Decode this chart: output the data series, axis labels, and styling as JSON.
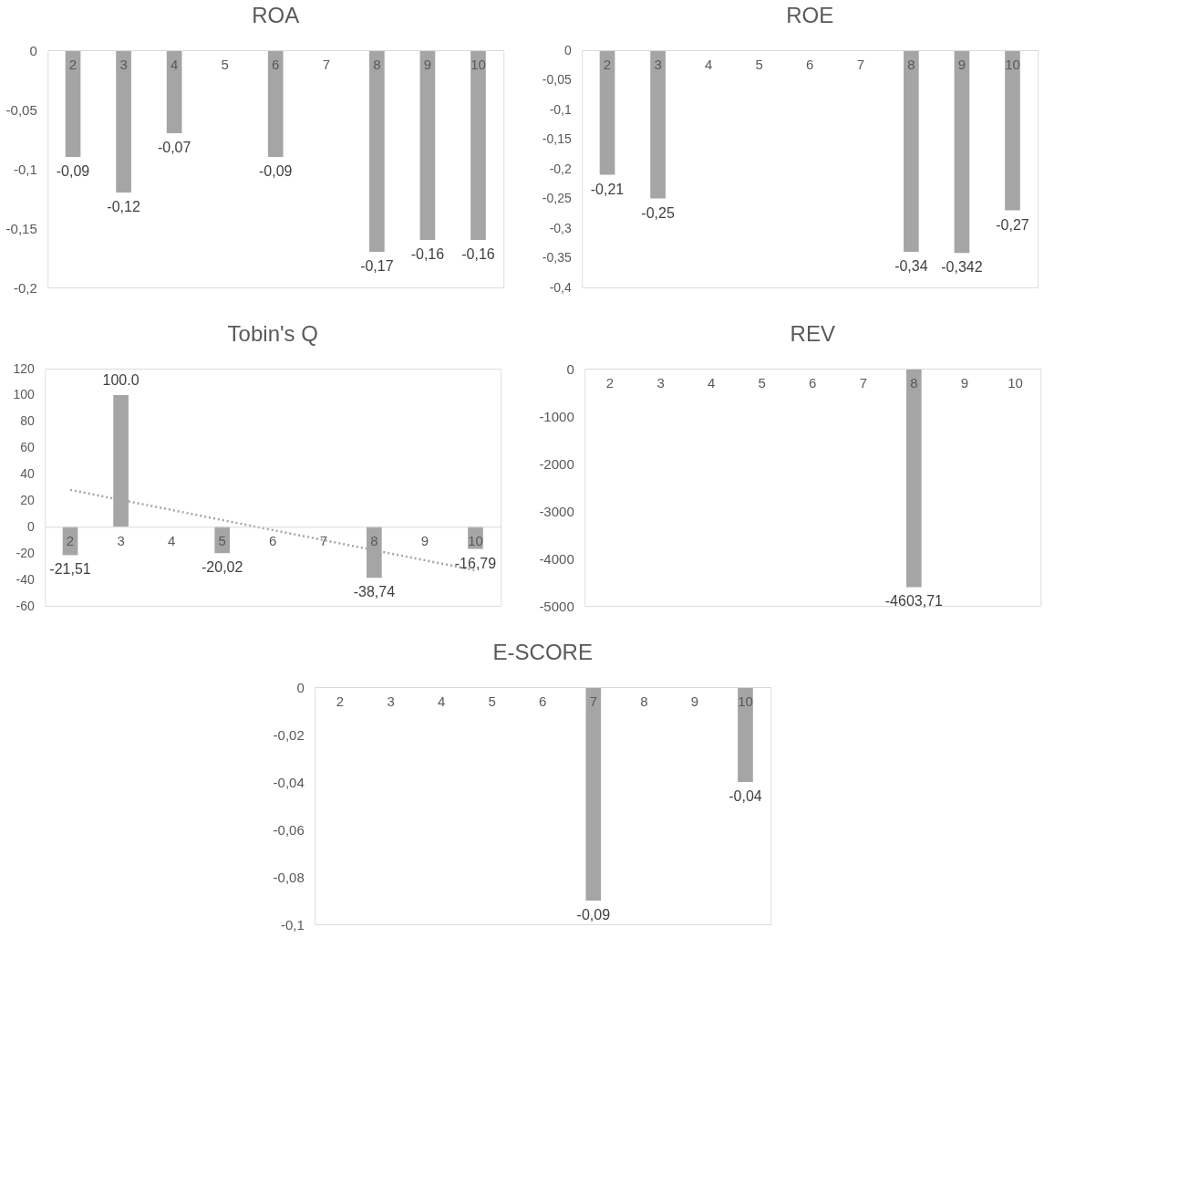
{
  "chart_data": [
    {
      "type": "bar",
      "title": "ROA",
      "categories": [
        "2",
        "3",
        "4",
        "5",
        "6",
        "7",
        "8",
        "9",
        "10"
      ],
      "values": [
        -0.09,
        -0.12,
        -0.07,
        null,
        -0.09,
        null,
        -0.17,
        -0.16,
        -0.16
      ],
      "value_labels": [
        "-0,09",
        "-0,12",
        "-0,07",
        null,
        "-0,09",
        null,
        "-0,17",
        "-0,16",
        "-0,16"
      ],
      "color": "#a5a5a5",
      "ylim": [
        -0.2,
        0
      ],
      "yticks": [
        {
          "value": 0,
          "label": "0"
        },
        {
          "value": -0.05,
          "label": "-0,05"
        },
        {
          "value": -0.1,
          "label": "-0,1"
        },
        {
          "value": -0.15,
          "label": "-0,15"
        },
        {
          "value": -0.2,
          "label": "-0,2"
        }
      ],
      "grid": false
    },
    {
      "type": "bar",
      "title": "ROE",
      "categories": [
        "2",
        "3",
        "4",
        "5",
        "6",
        "7",
        "8",
        "9",
        "10"
      ],
      "values": [
        -0.21,
        -0.25,
        null,
        null,
        null,
        null,
        -0.34,
        -0.342,
        -0.27
      ],
      "value_labels": [
        "-0,21",
        "-0,25",
        null,
        null,
        null,
        null,
        "-0,34",
        "-0,342",
        "-0,27"
      ],
      "color": "#a5a5a5",
      "ylim": [
        -0.4,
        0
      ],
      "yticks": [
        {
          "value": 0,
          "label": "0"
        },
        {
          "value": -0.05,
          "label": "-0,05"
        },
        {
          "value": -0.1,
          "label": "-0,1"
        },
        {
          "value": -0.15,
          "label": "-0,15"
        },
        {
          "value": -0.2,
          "label": "-0,2"
        },
        {
          "value": -0.25,
          "label": "-0,25"
        },
        {
          "value": -0.3,
          "label": "-0,3"
        },
        {
          "value": -0.35,
          "label": "-0,35"
        },
        {
          "value": -0.4,
          "label": "-0,4"
        }
      ],
      "grid": false
    },
    {
      "type": "bar",
      "title": "Tobin's Q",
      "categories": [
        "2",
        "3",
        "4",
        "5",
        "6",
        "7",
        "8",
        "9",
        "10"
      ],
      "series": [
        {
          "type": "bar",
          "color": "#a5a5a5",
          "values": [
            -21.51,
            100.0,
            null,
            -20.02,
            null,
            null,
            -38.74,
            null,
            -16.79
          ],
          "value_labels": [
            "-21,51",
            "100.0",
            null,
            "-20,02",
            null,
            null,
            "-38,74",
            null,
            "-16,79"
          ]
        },
        {
          "type": "line",
          "color": "#a5a5a5",
          "line_style": "dotted",
          "values": [
            28,
            20.4,
            12.8,
            5.1,
            -2.5,
            -10.1,
            -17.8,
            -25.4,
            -33
          ]
        }
      ],
      "ylim": [
        -60,
        120
      ],
      "yticks": [
        -60,
        -40,
        -20,
        0,
        20,
        40,
        60,
        80,
        100,
        120
      ],
      "grid": false
    },
    {
      "type": "bar",
      "title": "REV",
      "categories": [
        "2",
        "3",
        "4",
        "5",
        "6",
        "7",
        "8",
        "9",
        "10"
      ],
      "values": [
        null,
        null,
        null,
        null,
        null,
        null,
        -4603.71,
        null,
        null
      ],
      "value_labels": [
        null,
        null,
        null,
        null,
        null,
        null,
        "-4603,71",
        null,
        null
      ],
      "color": "#a5a5a5",
      "ylim": [
        -5000,
        0
      ],
      "yticks": [
        -5000,
        -4000,
        -3000,
        -2000,
        -1000,
        0
      ],
      "grid": false
    },
    {
      "type": "bar",
      "title": "E-SCORE",
      "categories": [
        "2",
        "3",
        "4",
        "5",
        "6",
        "7",
        "8",
        "9",
        "10"
      ],
      "values": [
        null,
        null,
        null,
        null,
        null,
        -0.09,
        null,
        null,
        -0.04
      ],
      "value_labels": [
        null,
        null,
        null,
        null,
        null,
        "-0,09",
        null,
        null,
        "-0,04"
      ],
      "color": "#a5a5a5",
      "ylim": [
        -0.1,
        0
      ],
      "yticks": [
        {
          "value": 0,
          "label": "0"
        },
        {
          "value": -0.02,
          "label": "-0,02"
        },
        {
          "value": -0.04,
          "label": "-0,04"
        },
        {
          "value": -0.06,
          "label": "-0,06"
        },
        {
          "value": -0.08,
          "label": "-0,08"
        },
        {
          "value": -0.1,
          "label": "-0,1"
        }
      ],
      "grid": false
    }
  ]
}
